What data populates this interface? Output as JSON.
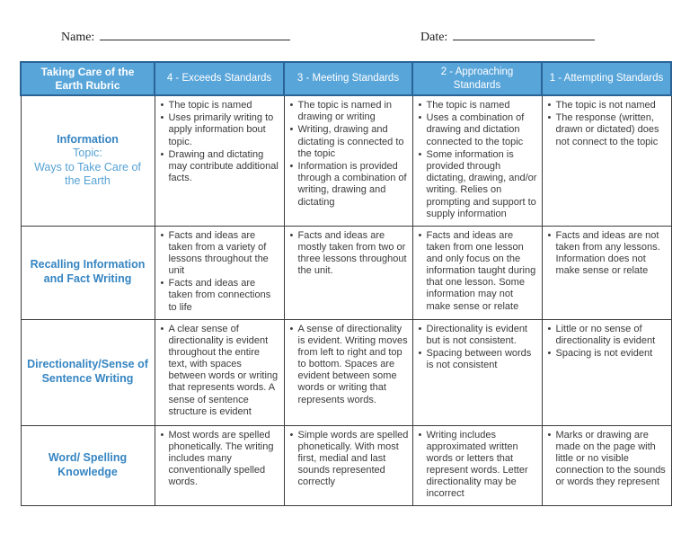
{
  "page": {
    "name_label": "Name:",
    "date_label": "Date:"
  },
  "colors": {
    "header_fill": "#58a5da",
    "header_text": "#ffffff",
    "header_border": "#2a6395",
    "grid_border": "#3b3b3b",
    "label_title": "#3585c2",
    "label_sub": "#56a2d4",
    "body_text": "#3a3a3a"
  },
  "table": {
    "header": {
      "title": "Taking Care of the Earth Rubric",
      "columns": [
        "4 - Exceeds Standards",
        "3 - Meeting Standards",
        "2 - Approaching Standards",
        "1 - Attempting Standards"
      ]
    },
    "rows": [
      {
        "id": "information",
        "label_title": "Information",
        "label_sub": [
          "Topic:",
          "Ways to Take Care of the Earth"
        ],
        "cells": [
          [
            "The topic is named",
            "Uses primarily writing to apply information bout topic.",
            "Drawing and dictating may contribute additional facts."
          ],
          [
            "The topic is named in drawing or writing",
            "Writing, drawing and dictating is connected to the topic",
            "Information is provided through a combination of writing, drawing and dictating"
          ],
          [
            "The topic is named",
            "Uses a combination of drawing and dictation connected to the topic",
            "Some information is provided through dictating, drawing, and/or writing. Relies on prompting and support to supply information"
          ],
          [
            "The topic is not named",
            "The response (written, drawn or dictated) does not connect to the topic"
          ]
        ]
      },
      {
        "id": "recalling-information",
        "label_title": "Recalling Information and Fact Writing",
        "label_sub": [],
        "cells": [
          [
            "Facts and ideas are taken from a variety of lessons throughout the unit",
            "Facts and ideas are taken from connections to life"
          ],
          [
            "Facts and ideas are mostly taken from two or three lessons throughout the unit."
          ],
          [
            "Facts and ideas are taken from one lesson and only focus on the information taught during that one lesson. Some information may not make sense or relate"
          ],
          [
            "Facts and ideas are not taken from any lessons. Information does not make sense or relate"
          ]
        ]
      },
      {
        "id": "directionality",
        "label_title": "Directionality/Sense of Sentence Writing",
        "label_sub": [],
        "cells": [
          [
            "A clear sense of directionality is evident throughout the entire text, with spaces between words or writing that represents words. A sense of sentence structure is evident"
          ],
          [
            "A sense of directionality is evident. Writing moves from left to right and top to bottom. Spaces are evident between some words or writing that represents words."
          ],
          [
            "Directionality is evident but is not consistent.",
            "Spacing between words is not consistent"
          ],
          [
            "Little or no sense of directionality is evident",
            "Spacing is not evident"
          ]
        ]
      },
      {
        "id": "word-spelling",
        "label_title": "Word/ Spelling Knowledge",
        "label_sub": [],
        "cells": [
          [
            "Most words are spelled phonetically. The writing includes many conventionally spelled words."
          ],
          [
            "Simple words are spelled phonetically. With most first, medial and  last sounds represented correctly"
          ],
          [
            "Writing includes approximated written words or letters that represent words. Letter directionality may be incorrect"
          ],
          [
            "Marks or drawing are made on the page with little or no visible connection to the sounds or words they represent"
          ]
        ]
      }
    ]
  }
}
